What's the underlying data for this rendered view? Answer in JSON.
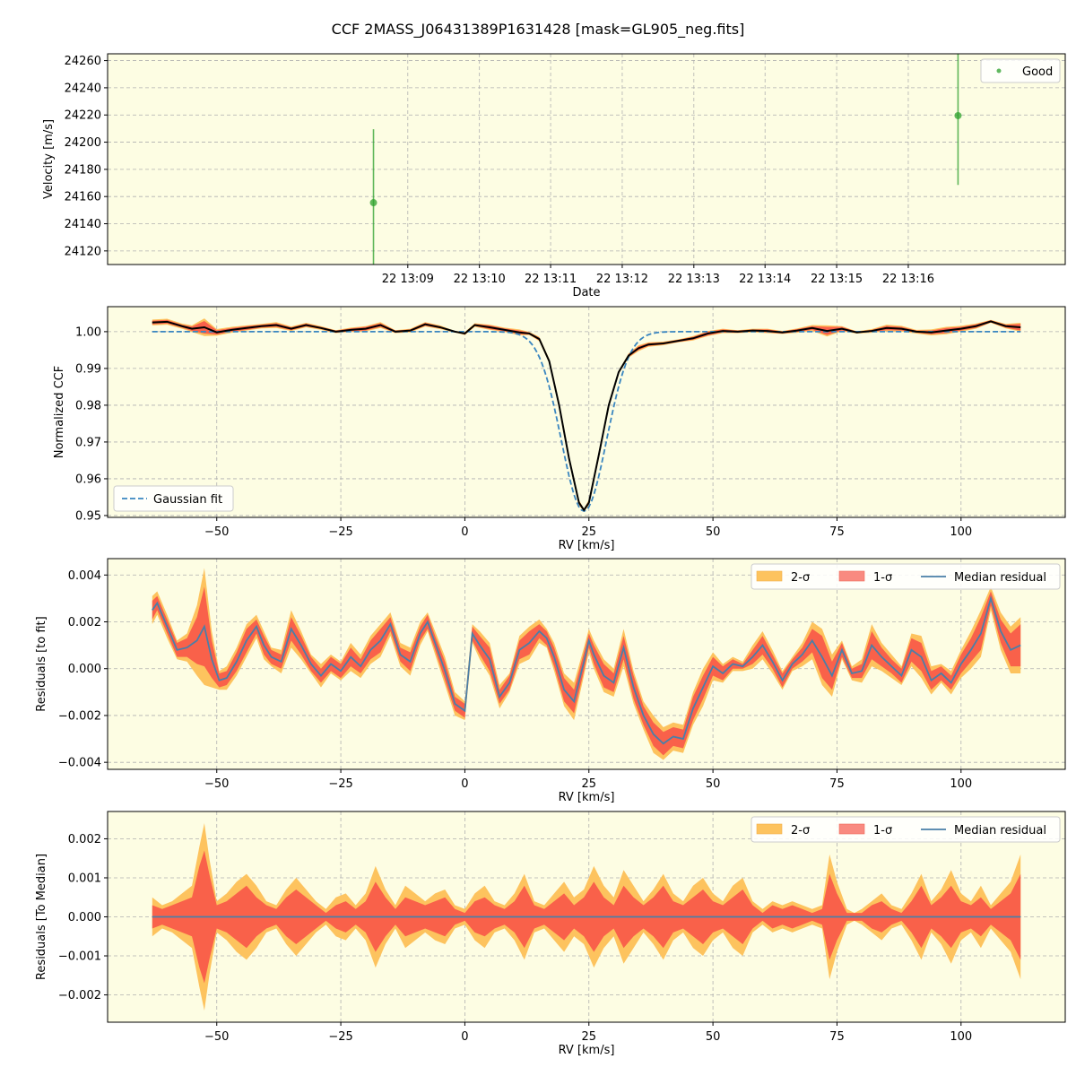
{
  "title": "CCF 2MASS_J06431389P1631428 [mask=GL905_neg.fits]",
  "colors": {
    "panel_bg": "#fdfde3",
    "grid": "#b0b0b0",
    "good": "#2ca02c",
    "sigma2": "#fdc35e",
    "sigma1": "#f9614a",
    "sigma1_legend": "#f98a80",
    "median": "#4a7fa8",
    "gauss": "#3a86c0",
    "ccf": "#000000"
  },
  "chart_data": [
    {
      "type": "scatter",
      "xlabel": "Date",
      "ylabel": "Velocity [m/s]",
      "xlim": [
        13.08,
        13.3033
      ],
      "ylim": [
        24110,
        24265
      ],
      "xticks": [
        13.15,
        13.1667,
        13.1833,
        13.2,
        13.2167,
        13.2333,
        13.25,
        13.2667
      ],
      "xtick_labels": [
        "22 13:09",
        "22 13:10",
        "22 13:11",
        "22 13:12",
        "22 13:13",
        "22 13:14",
        "22 13:15",
        "22 13:16"
      ],
      "yticks": [
        24120,
        24140,
        24160,
        24180,
        24200,
        24220,
        24240,
        24260
      ],
      "ytick_labels": [
        "24120",
        "24140",
        "24160",
        "24180",
        "24200",
        "24220",
        "24240",
        "24260"
      ],
      "legend": [
        "Good"
      ],
      "legend_position": "upper right",
      "series": [
        {
          "name": "Good",
          "points": [
            {
              "x": 13.142,
              "y": 24155.5,
              "err": 54
            },
            {
              "x": 13.2783,
              "y": 24219.5,
              "err": 51
            }
          ]
        }
      ]
    },
    {
      "type": "line",
      "xlabel": "RV [km/s]",
      "ylabel": "Normalized CCF",
      "xlim": [
        -72,
        121
      ],
      "ylim": [
        0.9495,
        1.0068
      ],
      "xticks": [
        -50,
        -25,
        0,
        25,
        50,
        75,
        100
      ],
      "xtick_labels": [
        "−50",
        "−25",
        "0",
        "25",
        "50",
        "75",
        "100"
      ],
      "yticks": [
        0.95,
        0.96,
        0.97,
        0.98,
        0.99,
        1.0
      ],
      "ytick_labels": [
        "0.95",
        "0.96",
        "0.97",
        "0.98",
        "0.99",
        "1.00"
      ],
      "legend": [
        "Gaussian fit"
      ],
      "legend_position": "lower left",
      "gaussian_fit": {
        "center": 24.0,
        "depth": 0.0488,
        "sigma": 4.55,
        "baseline": 1.0
      },
      "x": [
        -63,
        -60,
        -57,
        -55,
        -52.5,
        -50,
        -47,
        -44,
        -41,
        -38,
        -35,
        -32,
        -29,
        -26,
        -23,
        -20,
        -17,
        -14,
        -11,
        -8,
        -5,
        -2,
        0,
        2,
        5,
        8,
        11,
        13,
        15,
        17,
        19,
        21,
        23,
        24,
        25,
        27,
        29,
        31,
        33,
        35,
        37,
        40,
        43,
        46,
        49,
        52,
        55,
        58,
        61,
        64,
        67,
        70,
        73,
        76,
        79,
        82,
        85,
        88,
        91,
        94,
        97,
        100,
        103,
        106,
        109,
        112
      ],
      "y": [
        1.0025,
        1.0027,
        1.0015,
        1.0008,
        1.0012,
        0.9998,
        1.0005,
        1.001,
        1.0015,
        1.0018,
        1.0008,
        1.0018,
        1.001,
        1.0,
        1.0005,
        1.0008,
        1.0018,
        1.0,
        1.0003,
        1.002,
        1.0012,
        1.0,
        0.9995,
        1.0018,
        1.0012,
        1.0005,
        0.9998,
        0.9995,
        0.998,
        0.992,
        0.98,
        0.9655,
        0.9535,
        0.9515,
        0.9535,
        0.9665,
        0.98,
        0.989,
        0.9935,
        0.9955,
        0.9965,
        0.9968,
        0.9975,
        0.9982,
        0.9995,
        1.0002,
        1.0,
        1.0003,
        1.0002,
        0.9998,
        1.0003,
        1.001,
        1.0002,
        1.0008,
        0.9998,
        1.0002,
        1.001,
        1.0008,
        1.0,
        0.9998,
        1.0003,
        1.0008,
        1.0015,
        1.0028,
        1.0015,
        1.0012
      ],
      "sigma2": [
        0.0008,
        0.0008,
        0.0007,
        0.0009,
        0.0024,
        0.0009,
        0.0008,
        0.0007,
        0.0006,
        0.0008,
        0.0006,
        0.0006,
        0.0005,
        0.0004,
        0.0006,
        0.0007,
        0.0008,
        0.0004,
        0.0005,
        0.0006,
        0.0005,
        0.0002,
        0.0004,
        0.0005,
        0.0007,
        0.0006,
        0.0008,
        0.0004,
        0.0006,
        0.0006,
        0.0005,
        0.0008,
        0.0007,
        0.0004,
        0.0008,
        0.0009,
        0.0006,
        0.0004,
        0.0006,
        0.0008,
        0.0006,
        0.0005,
        0.0004,
        0.0006,
        0.0007,
        0.0006,
        0.0004,
        0.0005,
        0.0006,
        0.0004,
        0.0006,
        0.0008,
        0.0015,
        0.0007,
        0.0003,
        0.0005,
        0.0009,
        0.0008,
        0.0005,
        0.0008,
        0.001,
        0.0008,
        0.0007,
        0.0004,
        0.0006,
        0.0012
      ],
      "sigma1": [
        0.0005,
        0.0005,
        0.0004,
        0.0006,
        0.0017,
        0.0006,
        0.0005,
        0.0005,
        0.0004,
        0.0005,
        0.0004,
        0.0004,
        0.0003,
        0.0003,
        0.0004,
        0.0005,
        0.0005,
        0.0003,
        0.0003,
        0.0004,
        0.0003,
        0.0001,
        0.0003,
        0.0003,
        0.0005,
        0.0004,
        0.0005,
        0.0003,
        0.0004,
        0.0004,
        0.0003,
        0.0005,
        0.0005,
        0.0003,
        0.0005,
        0.0006,
        0.0004,
        0.0003,
        0.0004,
        0.0005,
        0.0004,
        0.0003,
        0.0003,
        0.0004,
        0.0005,
        0.0004,
        0.0003,
        0.0003,
        0.0004,
        0.0003,
        0.0004,
        0.0005,
        0.0011,
        0.0005,
        0.0002,
        0.0003,
        0.0006,
        0.0005,
        0.0003,
        0.0005,
        0.0007,
        0.0005,
        0.0005,
        0.0003,
        0.0004,
        0.0009
      ]
    },
    {
      "type": "line",
      "xlabel": "RV [km/s]",
      "ylabel": "Residuals [to fit]",
      "xlim": [
        -72,
        121
      ],
      "ylim": [
        -0.0043,
        0.0047
      ],
      "xticks": [
        -50,
        -25,
        0,
        25,
        50,
        75,
        100
      ],
      "xtick_labels": [
        "−50",
        "−25",
        "0",
        "25",
        "50",
        "75",
        "100"
      ],
      "yticks": [
        -0.004,
        -0.002,
        0.0,
        0.002,
        0.004
      ],
      "ytick_labels": [
        "−0.004",
        "−0.002",
        "0.000",
        "0.002",
        "0.004"
      ],
      "legend": [
        "2-σ",
        "1-σ",
        "Median residual"
      ],
      "legend_position": "upper right",
      "x": [
        -63,
        -62,
        -60,
        -58,
        -56,
        -54,
        -52.5,
        -51,
        -49.5,
        -48,
        -46,
        -44,
        -42,
        -40.5,
        -39,
        -37,
        -35,
        -33,
        -31,
        -29,
        -27,
        -25,
        -23,
        -21,
        -19,
        -17,
        -15,
        -13,
        -11,
        -9,
        -7.5,
        -6,
        -4,
        -2,
        0,
        1.5,
        3,
        5,
        7,
        9,
        11,
        13,
        15,
        16.5,
        18,
        20,
        22,
        24,
        25,
        26,
        28,
        30,
        32,
        34,
        36,
        38,
        40,
        42,
        44,
        46,
        48,
        50,
        52,
        54,
        56,
        58,
        60,
        62,
        64,
        66,
        68,
        70,
        72,
        74,
        76,
        78,
        80,
        82,
        84,
        86,
        88,
        90,
        92,
        94,
        96,
        98,
        100,
        102,
        104,
        106,
        108,
        110,
        112
      ],
      "y": [
        0.0025,
        0.0028,
        0.0018,
        0.0008,
        0.0009,
        0.0012,
        0.0018,
        0.0004,
        -0.0005,
        -0.0004,
        0.0003,
        0.0012,
        0.0018,
        0.001,
        0.0005,
        0.0003,
        0.0017,
        0.001,
        0.0002,
        -0.0003,
        0.0002,
        -0.0001,
        0.0005,
        0.0001,
        0.0008,
        0.0012,
        0.0019,
        0.0006,
        0.0003,
        0.0015,
        0.002,
        0.0011,
        -0.0001,
        -0.0015,
        -0.0018,
        0.0015,
        0.001,
        0.0004,
        -0.0012,
        -0.0006,
        0.0008,
        0.0011,
        0.0016,
        0.0013,
        0.0005,
        -0.0009,
        -0.0014,
        0.0003,
        0.0012,
        0.0006,
        -0.0003,
        -0.0006,
        0.0009,
        -0.0008,
        -0.002,
        -0.0028,
        -0.0032,
        -0.0029,
        -0.003,
        -0.0017,
        -0.0008,
        0.0001,
        -0.0002,
        0.0002,
        0.0001,
        0.0005,
        0.001,
        0.0003,
        -0.0005,
        0.0002,
        0.0006,
        0.0012,
        0.0005,
        -0.0003,
        0.0008,
        -0.0002,
        -0.0001,
        0.001,
        0.0005,
        0.0001,
        -0.0003,
        0.0008,
        0.0005,
        -0.0005,
        -0.0002,
        -0.0006,
        0.0002,
        0.0008,
        0.0015,
        0.003,
        0.0016,
        0.0008,
        0.001
      ],
      "sigma2": [
        0.0006,
        0.0005,
        0.0005,
        0.0004,
        0.0006,
        0.0015,
        0.0025,
        0.0012,
        0.0004,
        0.0005,
        0.0006,
        0.0007,
        0.0005,
        0.0006,
        0.0004,
        0.0005,
        0.0008,
        0.0006,
        0.0004,
        0.0005,
        0.0004,
        0.0004,
        0.0006,
        0.0005,
        0.0006,
        0.0007,
        0.0005,
        0.0005,
        0.0006,
        0.0005,
        0.0004,
        0.0005,
        0.0006,
        0.0005,
        0.0004,
        0.0004,
        0.0006,
        0.0007,
        0.0005,
        0.0004,
        0.0006,
        0.0007,
        0.0005,
        0.0004,
        0.0006,
        0.0007,
        0.0008,
        0.0006,
        0.0005,
        0.0006,
        0.0007,
        0.0006,
        0.0008,
        0.0007,
        0.0006,
        0.0008,
        0.0007,
        0.0006,
        0.0006,
        0.0007,
        0.0008,
        0.0006,
        0.0004,
        0.0003,
        0.0002,
        0.0005,
        0.0006,
        0.0005,
        0.0004,
        0.0003,
        0.0005,
        0.0008,
        0.0012,
        0.0009,
        0.0004,
        0.0003,
        0.0005,
        0.0009,
        0.0006,
        0.0005,
        0.0004,
        0.0007,
        0.0009,
        0.0006,
        0.0004,
        0.0005,
        0.0006,
        0.0008,
        0.001,
        0.0005,
        0.0008,
        0.001,
        0.0012
      ],
      "sigma1": [
        0.0004,
        0.0003,
        0.0003,
        0.0003,
        0.0004,
        0.001,
        0.0017,
        0.0008,
        0.0003,
        0.0003,
        0.0004,
        0.0005,
        0.0003,
        0.0004,
        0.0003,
        0.0003,
        0.0005,
        0.0004,
        0.0003,
        0.0003,
        0.0003,
        0.0003,
        0.0004,
        0.0003,
        0.0004,
        0.0005,
        0.0003,
        0.0003,
        0.0004,
        0.0003,
        0.0003,
        0.0003,
        0.0004,
        0.0003,
        0.0003,
        0.0003,
        0.0004,
        0.0005,
        0.0003,
        0.0003,
        0.0004,
        0.0005,
        0.0003,
        0.0003,
        0.0004,
        0.0005,
        0.0005,
        0.0004,
        0.0003,
        0.0004,
        0.0005,
        0.0004,
        0.0005,
        0.0005,
        0.0004,
        0.0005,
        0.0005,
        0.0004,
        0.0004,
        0.0005,
        0.0005,
        0.0004,
        0.0003,
        0.0002,
        0.0001,
        0.0003,
        0.0004,
        0.0003,
        0.0003,
        0.0002,
        0.0003,
        0.0005,
        0.0009,
        0.0006,
        0.0003,
        0.0002,
        0.0003,
        0.0006,
        0.0004,
        0.0003,
        0.0003,
        0.0005,
        0.0006,
        0.0004,
        0.0003,
        0.0003,
        0.0004,
        0.0005,
        0.0007,
        0.0003,
        0.0005,
        0.0007,
        0.0009
      ]
    },
    {
      "type": "line",
      "xlabel": "RV [km/s]",
      "ylabel": "Residuals [To Median]",
      "xlim": [
        -72,
        121
      ],
      "ylim": [
        -0.0027,
        0.0027
      ],
      "xticks": [
        -50,
        -25,
        0,
        25,
        50,
        75,
        100
      ],
      "xtick_labels": [
        "−50",
        "−25",
        "0",
        "25",
        "50",
        "75",
        "100"
      ],
      "yticks": [
        -0.002,
        -0.001,
        0.0,
        0.001,
        0.002
      ],
      "ytick_labels": [
        "−0.002",
        "−0.001",
        "0.000",
        "0.001",
        "0.002"
      ],
      "legend": [
        "2-σ",
        "1-σ",
        "Median residual"
      ],
      "legend_position": "upper right",
      "x": [
        -63,
        -61,
        -59,
        -57,
        -55,
        -53.5,
        -52.5,
        -51.5,
        -50,
        -48,
        -46,
        -44,
        -42,
        -40,
        -38,
        -36,
        -34,
        -32,
        -30,
        -28,
        -26,
        -24,
        -22,
        -20,
        -18,
        -16,
        -14,
        -12,
        -10,
        -8,
        -6,
        -4,
        -2,
        0,
        2,
        4,
        6,
        8,
        10,
        12,
        14,
        16,
        18,
        20,
        22,
        24,
        26,
        28,
        30,
        32,
        34,
        36,
        38,
        40,
        42,
        44,
        46,
        48,
        50,
        52,
        54,
        56,
        58,
        60,
        62,
        64,
        66,
        68,
        70,
        72,
        73.5,
        75,
        77,
        78.5,
        80,
        82,
        84,
        86,
        88,
        90,
        92,
        94,
        96,
        98,
        100,
        102,
        104,
        106,
        108,
        110,
        112
      ],
      "y": [
        0.0,
        0.0,
        0.0,
        0.0,
        0.0,
        0.0,
        0.0,
        0.0,
        0.0,
        0.0,
        0.0,
        0.0,
        0.0,
        0.0,
        0.0,
        0.0,
        0.0,
        0.0,
        0.0,
        0.0,
        0.0,
        0.0,
        0.0,
        0.0,
        0.0,
        0.0,
        0.0,
        0.0,
        0.0,
        0.0,
        0.0,
        0.0,
        0.0,
        0.0,
        0.0,
        0.0,
        0.0,
        0.0,
        0.0,
        0.0,
        0.0,
        0.0,
        0.0,
        0.0,
        0.0,
        0.0,
        0.0,
        0.0,
        0.0,
        0.0,
        0.0,
        0.0,
        0.0,
        0.0,
        0.0,
        0.0,
        0.0,
        0.0,
        0.0,
        0.0,
        0.0,
        0.0,
        0.0,
        0.0,
        0.0,
        0.0,
        0.0,
        0.0,
        0.0,
        0.0,
        0.0,
        0.0,
        0.0,
        0.0,
        0.0,
        0.0,
        0.0,
        0.0,
        0.0,
        0.0,
        0.0,
        0.0,
        0.0,
        0.0,
        0.0,
        0.0,
        0.0,
        0.0,
        0.0,
        0.0,
        0.0
      ],
      "sigma2": [
        0.0005,
        0.0003,
        0.0004,
        0.0006,
        0.0008,
        0.0018,
        0.0024,
        0.0015,
        0.0004,
        0.0006,
        0.0009,
        0.0011,
        0.0008,
        0.0004,
        0.0003,
        0.0007,
        0.001,
        0.0007,
        0.0004,
        0.0002,
        0.0005,
        0.0006,
        0.0003,
        0.0006,
        0.0013,
        0.0007,
        0.0003,
        0.0008,
        0.0006,
        0.0004,
        0.0006,
        0.0007,
        0.0003,
        0.0002,
        0.0006,
        0.0008,
        0.0004,
        0.0003,
        0.0006,
        0.0011,
        0.0004,
        0.0003,
        0.0006,
        0.0009,
        0.0005,
        0.0007,
        0.0013,
        0.0008,
        0.0005,
        0.0012,
        0.0008,
        0.0004,
        0.0007,
        0.0011,
        0.0006,
        0.0004,
        0.0008,
        0.001,
        0.0006,
        0.0004,
        0.0008,
        0.001,
        0.0004,
        0.0002,
        0.0004,
        0.0003,
        0.0004,
        0.0003,
        0.0002,
        0.0003,
        0.0016,
        0.0009,
        0.0002,
        0.0001,
        0.0002,
        0.0004,
        0.0006,
        0.0003,
        0.0002,
        0.0006,
        0.0011,
        0.0004,
        0.0007,
        0.0012,
        0.0006,
        0.0004,
        0.0008,
        0.0003,
        0.0006,
        0.0009,
        0.0016
      ],
      "sigma1": [
        0.0003,
        0.0002,
        0.0003,
        0.0004,
        0.0005,
        0.0013,
        0.0017,
        0.0011,
        0.0003,
        0.0004,
        0.0006,
        0.0008,
        0.0005,
        0.0003,
        0.0002,
        0.0005,
        0.0007,
        0.0005,
        0.0003,
        0.0001,
        0.0003,
        0.0004,
        0.0002,
        0.0004,
        0.0009,
        0.0005,
        0.0002,
        0.0005,
        0.0004,
        0.0003,
        0.0004,
        0.0005,
        0.0002,
        0.0001,
        0.0004,
        0.0005,
        0.0003,
        0.0002,
        0.0004,
        0.0008,
        0.0003,
        0.0002,
        0.0004,
        0.0006,
        0.0003,
        0.0005,
        0.0009,
        0.0005,
        0.0003,
        0.0008,
        0.0005,
        0.0003,
        0.0005,
        0.0008,
        0.0004,
        0.0003,
        0.0005,
        0.0007,
        0.0004,
        0.0003,
        0.0005,
        0.0007,
        0.0003,
        0.0001,
        0.0003,
        0.0002,
        0.0003,
        0.0002,
        0.0001,
        0.0002,
        0.0011,
        0.0006,
        0.0001,
        0.0001,
        0.0001,
        0.0003,
        0.0004,
        0.0002,
        0.0001,
        0.0004,
        0.0008,
        0.0003,
        0.0005,
        0.0008,
        0.0004,
        0.0003,
        0.0005,
        0.0002,
        0.0004,
        0.0006,
        0.0011
      ]
    }
  ]
}
